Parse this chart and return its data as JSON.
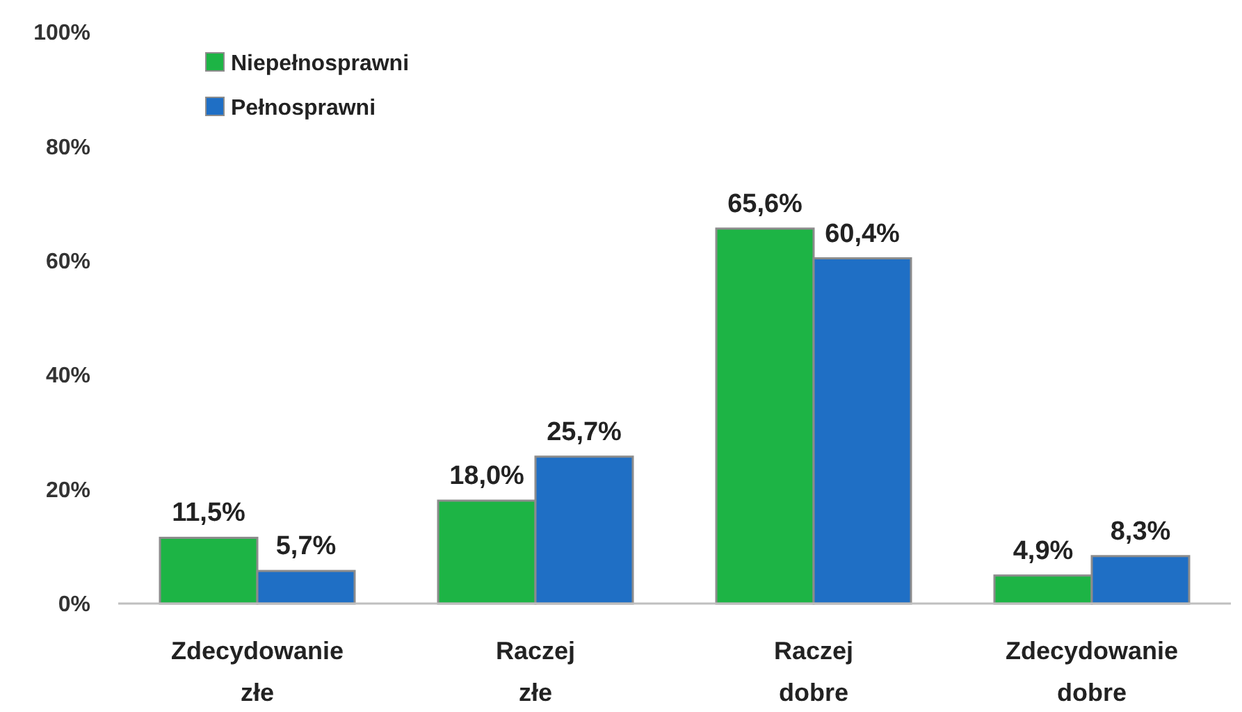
{
  "chart_data": {
    "type": "bar",
    "categories": [
      "Zdecydowanie złe",
      "Raczej złe",
      "Raczej dobre",
      "Zdecydowanie dobre"
    ],
    "series": [
      {
        "name": "Niepełnosprawni",
        "color": "#1db445",
        "values": [
          11.5,
          18.0,
          65.6,
          4.9
        ],
        "value_labels": [
          "11,5%",
          "18,0%",
          "65,6%",
          "4,9%"
        ]
      },
      {
        "name": "Pełnosprawni",
        "color": "#1f6fc5",
        "values": [
          5.7,
          25.7,
          60.4,
          8.3
        ],
        "value_labels": [
          "5,7%",
          "25,7%",
          "60,4%",
          "8,3%"
        ]
      }
    ],
    "ylim": [
      0,
      100
    ],
    "yticks": [
      {
        "value": 0,
        "label": "0%"
      },
      {
        "value": 20,
        "label": "20%"
      },
      {
        "value": 40,
        "label": "40%"
      },
      {
        "value": 60,
        "label": "60%"
      },
      {
        "value": 80,
        "label": "80%"
      },
      {
        "value": 100,
        "label": "100%"
      }
    ],
    "grid": false,
    "legend": "top left"
  }
}
